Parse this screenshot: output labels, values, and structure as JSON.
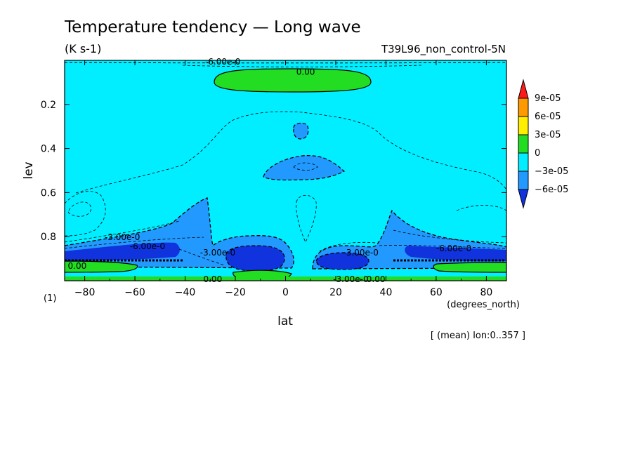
{
  "chart_data": {
    "type": "heatmap",
    "title": "Temperature tendency — Long wave",
    "units": "(K s-1)",
    "experiment": "T39L96_non_control-5N",
    "xlabel": "lat",
    "xunits": "(degrees_north)",
    "ylabel": "lev",
    "yunits": "(1)",
    "xlim": [
      -88,
      88
    ],
    "ylim": [
      1.0,
      0.0
    ],
    "x_ticks": [
      -80,
      -60,
      -40,
      -20,
      0,
      20,
      40,
      60,
      80
    ],
    "x_tick_labels": [
      "−80",
      "−60",
      "−40",
      "−20",
      "0",
      "20",
      "40",
      "60",
      "80"
    ],
    "y_ticks": [
      0.2,
      0.4,
      0.6,
      0.8
    ],
    "y_tick_labels": [
      "0.2",
      "0.4",
      "0.6",
      "0.8"
    ],
    "footnote": "[ (mean) lon:0..357 ]",
    "colorbar": {
      "levels": [
        "9e-05",
        "6e-05",
        "3e-05",
        "0",
        "−3e-05",
        "−6e-05"
      ],
      "colors": [
        "#ff1a1a",
        "#ff9900",
        "#ffee00",
        "#22dd22",
        "#00eeff",
        "#2299ff",
        "#1133dd"
      ]
    },
    "contour_labels": [
      {
        "text": "0.00",
        "lat": 8,
        "lev": 0.05
      },
      {
        "text": "-6.00e-0",
        "lat": -25,
        "lev": 0.003
      },
      {
        "text": "-3.00e-0",
        "lat": -65,
        "lev": 0.8
      },
      {
        "text": "-6.00e-0",
        "lat": -55,
        "lev": 0.84
      },
      {
        "text": "0.00",
        "lat": -83,
        "lev": 0.93
      },
      {
        "text": "-3.00e-0",
        "lat": -27,
        "lev": 0.87
      },
      {
        "text": "-3.00e-0",
        "lat": 30,
        "lev": 0.87
      },
      {
        "text": "-6.00e-0",
        "lat": 67,
        "lev": 0.85
      },
      {
        "text": "0.00",
        "lat": -29,
        "lev": 0.99
      },
      {
        "text": "-3.00e-0",
        "lat": 26,
        "lev": 0.99
      },
      {
        "text": "0.00",
        "lat": 36,
        "lev": 0.99
      }
    ]
  }
}
